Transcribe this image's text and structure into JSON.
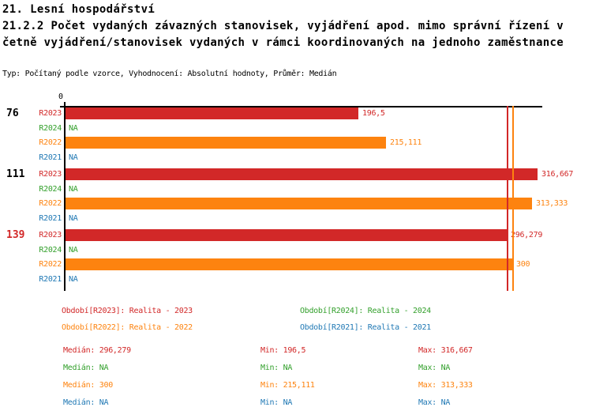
{
  "title": {
    "line1": "21. Lesní hospodářství",
    "line2": "21.2.2 Počet vydaných závazných stanovisek, vyjádření apod. mimo správní řízení v",
    "line3": "četně vyjádření/stanovisek vydaných v rámci koordinovaných na jednoho zaměstnance"
  },
  "subtitle": "Typ: Počítaný podle vzorce, Vyhodnocení: Absolutní hodnoty, Průměr: Medián",
  "colors": {
    "red": "#d22828",
    "green": "#33a02c",
    "orange": "#fd830f",
    "blue": "#1f78b4",
    "black": "#000000"
  },
  "chart_data": {
    "type": "bar",
    "orientation": "horizontal",
    "title": "21.2.2 Počet vydaných závazných stanovisek, vyjádření apod. mimo správní řízení včetně vyjádření/stanovisek vydaných v rámci koordinovaných na jednoho zaměstnance",
    "axis": {
      "min": 0,
      "max": 320,
      "tick_label": "0",
      "grid": false
    },
    "series": [
      "R2023",
      "R2024",
      "R2022",
      "R2021"
    ],
    "series_color_keys": {
      "R2023": "red",
      "R2024": "green",
      "R2022": "orange",
      "R2021": "blue"
    },
    "groups": [
      {
        "label": "76",
        "label_color_key": "black",
        "rows": [
          {
            "series": "R2023",
            "value": 196.5,
            "display": "196,5"
          },
          {
            "series": "R2024",
            "value": null,
            "display": "NA"
          },
          {
            "series": "R2022",
            "value": 215.111,
            "display": "215,111"
          },
          {
            "series": "R2021",
            "value": null,
            "display": "NA"
          }
        ]
      },
      {
        "label": "111",
        "label_color_key": "black",
        "rows": [
          {
            "series": "R2023",
            "value": 316.667,
            "display": "316,667"
          },
          {
            "series": "R2024",
            "value": null,
            "display": "NA"
          },
          {
            "series": "R2022",
            "value": 313.333,
            "display": "313,333"
          },
          {
            "series": "R2021",
            "value": null,
            "display": "NA"
          }
        ]
      },
      {
        "label": "139",
        "label_color_key": "red",
        "rows": [
          {
            "series": "R2023",
            "value": 296.279,
            "display": "296,279"
          },
          {
            "series": "R2024",
            "value": null,
            "display": "NA"
          },
          {
            "series": "R2022",
            "value": 300,
            "display": "300"
          },
          {
            "series": "R2021",
            "value": null,
            "display": "NA"
          }
        ]
      }
    ],
    "median_lines": [
      {
        "value": 296.279,
        "color_key": "red"
      },
      {
        "value": 300,
        "color_key": "orange"
      }
    ]
  },
  "legend": [
    {
      "text": "Období[R2023]: Realita - 2023",
      "color_key": "red"
    },
    {
      "text": "Období[R2024]: Realita - 2024",
      "color_key": "green"
    },
    {
      "text": "Období[R2022]: Realita - 2022",
      "color_key": "orange"
    },
    {
      "text": "Období[R2021]: Realita - 2021",
      "color_key": "blue"
    }
  ],
  "stats": [
    {
      "color_key": "red",
      "median": "Medián: 296,279",
      "min": "Min: 196,5",
      "max": "Max: 316,667"
    },
    {
      "color_key": "green",
      "median": "Medián: NA",
      "min": "Min: NA",
      "max": "Max: NA"
    },
    {
      "color_key": "orange",
      "median": "Medián: 300",
      "min": "Min: 215,111",
      "max": "Max: 313,333"
    },
    {
      "color_key": "blue",
      "median": "Medián: NA",
      "min": "Min: NA",
      "max": "Max: NA"
    }
  ]
}
